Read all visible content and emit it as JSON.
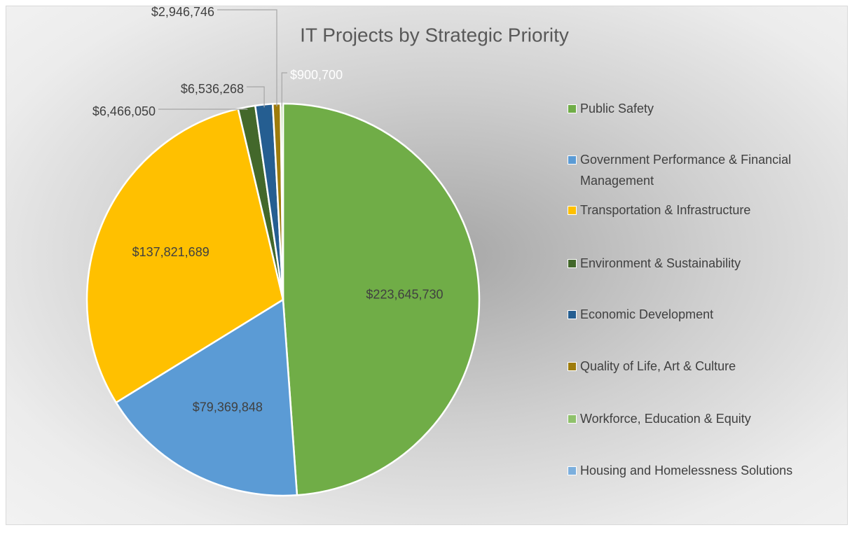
{
  "chart_data": {
    "type": "pie",
    "title": "IT Projects by Strategic Priority",
    "categories": [
      "Public Safety",
      "Government Performance & Financial Management",
      "Transportation & Infrastructure",
      "Environment & Sustainability",
      "Economic Development",
      "Quality of Life, Art & Culture",
      "Workforce, Education & Equity",
      "Housing and Homelessness Solutions"
    ],
    "values": [
      223645730,
      79369848,
      137821689,
      6466050,
      6536268,
      2946746,
      900700,
      null
    ],
    "value_labels": [
      "$223,645,730",
      "$79,369,848",
      "$137,821,689",
      "$6,466,050",
      "$6,536,268",
      "$2,946,746",
      "$900,700",
      null
    ],
    "colors": [
      "#70ad47",
      "#5b9bd5",
      "#ffc000",
      "#43682b",
      "#255e91",
      "#9e7c0c",
      "#8fc16b",
      "#7cafdd"
    ],
    "legend": "right"
  }
}
